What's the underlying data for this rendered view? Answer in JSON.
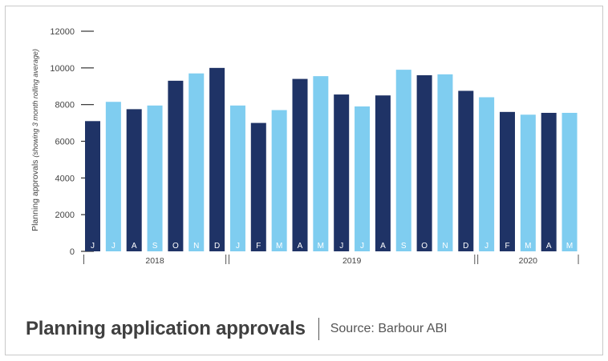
{
  "chart_data": {
    "type": "bar",
    "title": "Planning application approvals",
    "source": "Source: Barbour ABI",
    "ylabel": "Planning approvals",
    "ylabel_note": "(showing 3 month rolling average)",
    "ylim": [
      0,
      12000
    ],
    "yticks": [
      0,
      2000,
      4000,
      6000,
      8000,
      10000,
      12000
    ],
    "ytick_labels": [
      "0",
      "2000",
      "4000",
      "6000",
      "8000",
      "10000",
      "12000"
    ],
    "categories": [
      "J",
      "J",
      "A",
      "S",
      "O",
      "N",
      "D",
      "J",
      "F",
      "M",
      "A",
      "M",
      "J",
      "J",
      "A",
      "S",
      "O",
      "N",
      "D",
      "J",
      "F",
      "M",
      "A",
      "M"
    ],
    "values": [
      7100,
      8150,
      7750,
      7950,
      9300,
      9700,
      10000,
      7950,
      7000,
      7700,
      9400,
      9550,
      8550,
      7900,
      8500,
      9900,
      9600,
      9650,
      8750,
      8400,
      7600,
      7450,
      7550,
      7550
    ],
    "bar_colors": [
      "#1f3366",
      "#7fcdf0",
      "#1f3366",
      "#7fcdf0",
      "#1f3366",
      "#7fcdf0",
      "#1f3366",
      "#7fcdf0",
      "#1f3366",
      "#7fcdf0",
      "#1f3366",
      "#7fcdf0",
      "#1f3366",
      "#7fcdf0",
      "#1f3366",
      "#7fcdf0",
      "#1f3366",
      "#7fcdf0",
      "#1f3366",
      "#7fcdf0",
      "#1f3366",
      "#7fcdf0",
      "#1f3366",
      "#7fcdf0"
    ],
    "year_groups": [
      {
        "label": "2018",
        "count": 7
      },
      {
        "label": "2019",
        "count": 12
      },
      {
        "label": "2020",
        "count": 5
      }
    ],
    "grid": false,
    "legend": "none"
  }
}
